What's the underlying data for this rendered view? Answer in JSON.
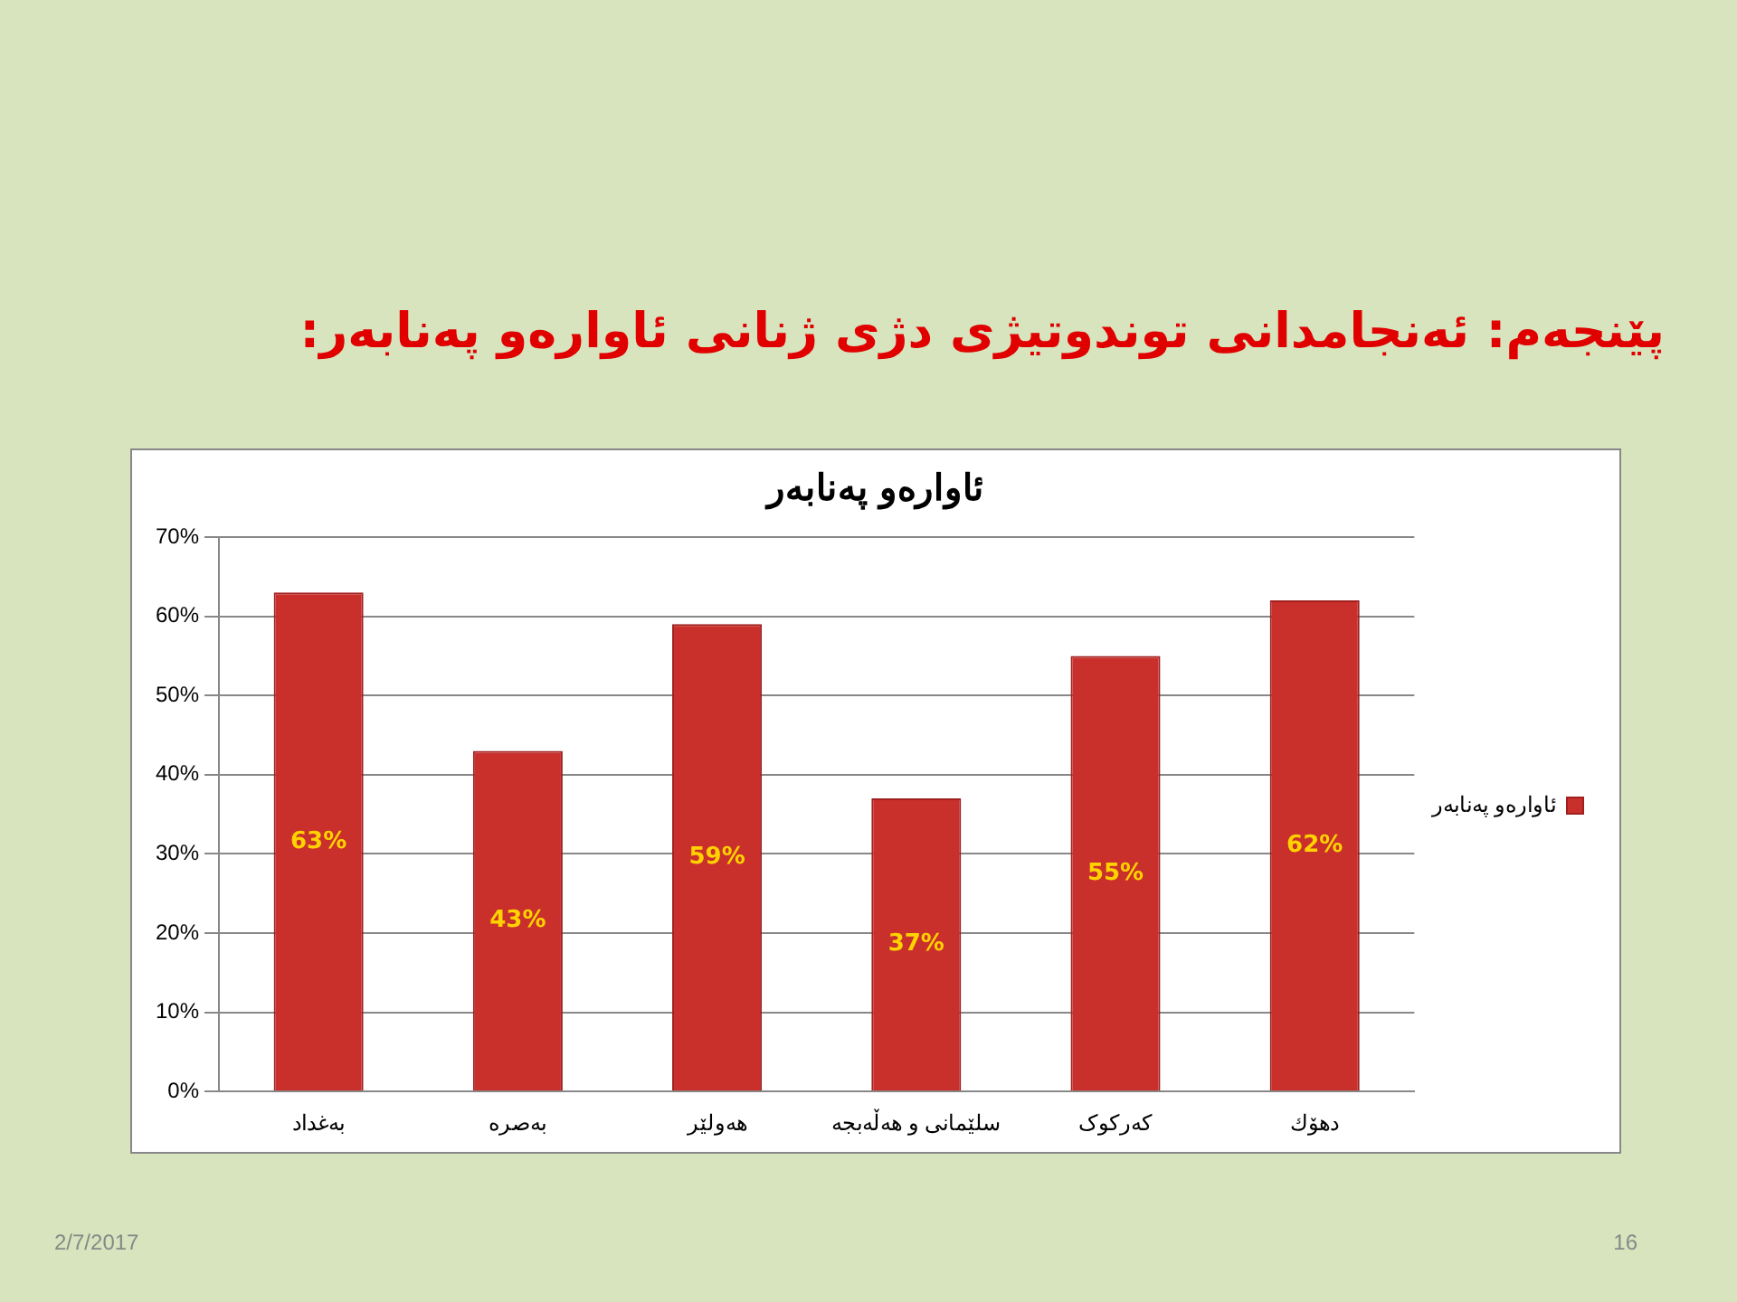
{
  "chart_data": {
    "type": "bar",
    "title": "پێنجەم: ئەنجامدانی توندوتیژی دژی ژنانی ئاوارەو پەنابەر:",
    "subtitle": "ئاوارەو پەنابەر",
    "categories": [
      "بەغداد",
      "بەصرە",
      "هەولێر",
      "سلێمانی و هەڵەبجە",
      "کەرکوک",
      "دهۆك"
    ],
    "series": [
      {
        "name": "ئاوارەو پەنابەر",
        "color": "#c9302c",
        "values": [
          63,
          43,
          59,
          37,
          55,
          62
        ],
        "value_labels": [
          "63%",
          "43%",
          "59%",
          "37%",
          "55%",
          "62%"
        ]
      }
    ],
    "ylim": [
      0,
      70
    ],
    "yticks": [
      {
        "value": 0,
        "label": "0%"
      },
      {
        "value": 10,
        "label": "10%"
      },
      {
        "value": 20,
        "label": "20%"
      },
      {
        "value": 30,
        "label": "30%"
      },
      {
        "value": 40,
        "label": "40%"
      },
      {
        "value": 50,
        "label": "50%"
      },
      {
        "value": 60,
        "label": "60%"
      },
      {
        "value": 70,
        "label": "70%"
      }
    ],
    "grid": "y",
    "legend": "right",
    "annotations": [
      "2/7/2017",
      "16"
    ]
  }
}
